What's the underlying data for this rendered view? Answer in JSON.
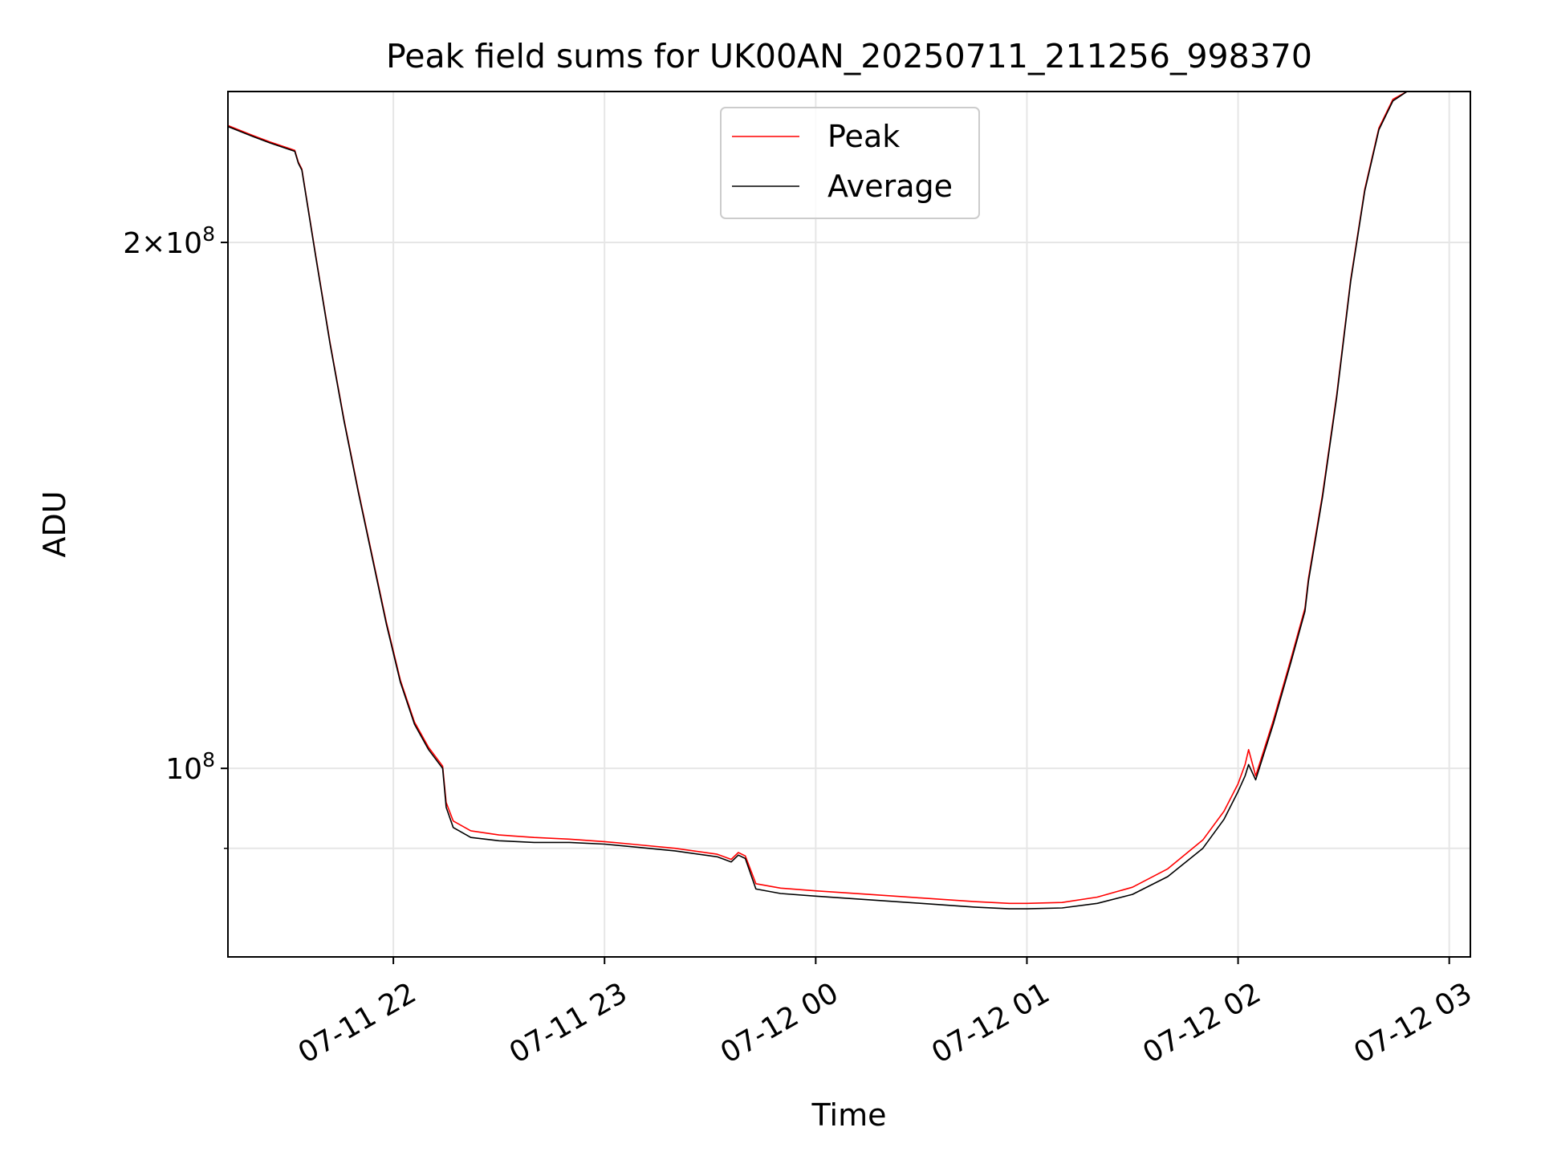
{
  "chart_data": {
    "type": "line",
    "title": "Peak field sums for UK00AN_20250711_211256_998370",
    "xlabel": "Time",
    "ylabel": "ADU",
    "yscale": "log",
    "ylim": [
      78000000,
      244000000
    ],
    "xlim": [
      "2025-07-11 21:13",
      "2025-07-12 03:06"
    ],
    "grid": true,
    "legend": {
      "location": "upper center",
      "entries": [
        "Peak",
        "Average"
      ]
    },
    "x_ticks": [
      {
        "time": "2025-07-11 22:00",
        "label": "07-11 22"
      },
      {
        "time": "2025-07-11 23:00",
        "label": "07-11 23"
      },
      {
        "time": "2025-07-12 00:00",
        "label": "07-12 00"
      },
      {
        "time": "2025-07-12 01:00",
        "label": "07-12 01"
      },
      {
        "time": "2025-07-12 02:00",
        "label": "07-12 02"
      },
      {
        "time": "2025-07-12 03:00",
        "label": "07-12 03"
      }
    ],
    "y_ticks": [
      {
        "value": 100000000,
        "base": "10",
        "exp": "8",
        "mantissa": ""
      },
      {
        "value": 200000000,
        "base": "10",
        "exp": "8",
        "mantissa": "2×"
      }
    ],
    "y_minor_ticks": [
      90000000
    ],
    "colors": {
      "peak": "#ff0000",
      "average": "#000000"
    },
    "series": [
      {
        "name": "Average",
        "color": "#000000",
        "points": [
          [
            "2025-07-11 21:13",
            233000000
          ],
          [
            "2025-07-11 21:20",
            230000000
          ],
          [
            "2025-07-11 21:25",
            228000000
          ],
          [
            "2025-07-11 21:32",
            225500000
          ],
          [
            "2025-07-11 21:33",
            222000000
          ],
          [
            "2025-07-11 21:34",
            220000000
          ],
          [
            "2025-07-11 21:38",
            196000000
          ],
          [
            "2025-07-11 21:42",
            175000000
          ],
          [
            "2025-07-11 21:46",
            158000000
          ],
          [
            "2025-07-11 21:50",
            144000000
          ],
          [
            "2025-07-11 21:54",
            132000000
          ],
          [
            "2025-07-11 21:58",
            121000000
          ],
          [
            "2025-07-11 22:02",
            112000000
          ],
          [
            "2025-07-11 22:06",
            106000000
          ],
          [
            "2025-07-11 22:10",
            102500000
          ],
          [
            "2025-07-11 22:14",
            100000000
          ],
          [
            "2025-07-11 22:15",
            95000000
          ],
          [
            "2025-07-11 22:17",
            92500000
          ],
          [
            "2025-07-11 22:22",
            91300000
          ],
          [
            "2025-07-11 22:30",
            90900000
          ],
          [
            "2025-07-11 22:40",
            90700000
          ],
          [
            "2025-07-11 22:50",
            90700000
          ],
          [
            "2025-07-11 23:00",
            90500000
          ],
          [
            "2025-07-11 23:10",
            90100000
          ],
          [
            "2025-07-11 23:20",
            89700000
          ],
          [
            "2025-07-11 23:32",
            89000000
          ],
          [
            "2025-07-11 23:36",
            88400000
          ],
          [
            "2025-07-11 23:38",
            89200000
          ],
          [
            "2025-07-11 23:40",
            88800000
          ],
          [
            "2025-07-11 23:43",
            85300000
          ],
          [
            "2025-07-11 23:50",
            84800000
          ],
          [
            "2025-07-12 00:00",
            84500000
          ],
          [
            "2025-07-12 00:15",
            84100000
          ],
          [
            "2025-07-12 00:30",
            83700000
          ],
          [
            "2025-07-12 00:45",
            83300000
          ],
          [
            "2025-07-12 00:55",
            83100000
          ],
          [
            "2025-07-12 01:00",
            83100000
          ],
          [
            "2025-07-12 01:10",
            83200000
          ],
          [
            "2025-07-12 01:20",
            83700000
          ],
          [
            "2025-07-12 01:30",
            84700000
          ],
          [
            "2025-07-12 01:40",
            86700000
          ],
          [
            "2025-07-12 01:50",
            90000000
          ],
          [
            "2025-07-12 01:56",
            93500000
          ],
          [
            "2025-07-12 02:00",
            97000000
          ],
          [
            "2025-07-12 02:02",
            99000000
          ],
          [
            "2025-07-12 02:03",
            100500000
          ],
          [
            "2025-07-12 02:05",
            98500000
          ],
          [
            "2025-07-12 02:10",
            106000000
          ],
          [
            "2025-07-12 02:15",
            115000000
          ],
          [
            "2025-07-12 02:19",
            123000000
          ],
          [
            "2025-07-12 02:20",
            128000000
          ],
          [
            "2025-07-12 02:24",
            143000000
          ],
          [
            "2025-07-12 02:28",
            163000000
          ],
          [
            "2025-07-12 02:32",
            190000000
          ],
          [
            "2025-07-12 02:36",
            214000000
          ],
          [
            "2025-07-12 02:40",
            232000000
          ],
          [
            "2025-07-12 02:44",
            241000000
          ],
          [
            "2025-07-12 02:48",
            244000000
          ]
        ]
      },
      {
        "name": "Peak",
        "color": "#ff0000",
        "points": [
          [
            "2025-07-11 21:13",
            233300000
          ],
          [
            "2025-07-11 21:20",
            230300000
          ],
          [
            "2025-07-11 21:25",
            228300000
          ],
          [
            "2025-07-11 21:32",
            225800000
          ],
          [
            "2025-07-11 21:33",
            222300000
          ],
          [
            "2025-07-11 21:34",
            220300000
          ],
          [
            "2025-07-11 21:38",
            196300000
          ],
          [
            "2025-07-11 21:42",
            175300000
          ],
          [
            "2025-07-11 21:46",
            158300000
          ],
          [
            "2025-07-11 21:50",
            144300000
          ],
          [
            "2025-07-11 21:54",
            132300000
          ],
          [
            "2025-07-11 21:58",
            121300000
          ],
          [
            "2025-07-11 22:02",
            112300000
          ],
          [
            "2025-07-11 22:06",
            106300000
          ],
          [
            "2025-07-11 22:10",
            102800000
          ],
          [
            "2025-07-11 22:14",
            100300000
          ],
          [
            "2025-07-11 22:15",
            95600000
          ],
          [
            "2025-07-11 22:17",
            93300000
          ],
          [
            "2025-07-11 22:22",
            92100000
          ],
          [
            "2025-07-11 22:30",
            91600000
          ],
          [
            "2025-07-11 22:40",
            91300000
          ],
          [
            "2025-07-11 22:50",
            91100000
          ],
          [
            "2025-07-11 23:00",
            90800000
          ],
          [
            "2025-07-11 23:10",
            90400000
          ],
          [
            "2025-07-11 23:20",
            90000000
          ],
          [
            "2025-07-11 23:32",
            89300000
          ],
          [
            "2025-07-11 23:36",
            88700000
          ],
          [
            "2025-07-11 23:38",
            89500000
          ],
          [
            "2025-07-11 23:40",
            89100000
          ],
          [
            "2025-07-11 23:43",
            85900000
          ],
          [
            "2025-07-11 23:50",
            85400000
          ],
          [
            "2025-07-12 00:00",
            85100000
          ],
          [
            "2025-07-12 00:15",
            84700000
          ],
          [
            "2025-07-12 00:30",
            84300000
          ],
          [
            "2025-07-12 00:45",
            83900000
          ],
          [
            "2025-07-12 00:55",
            83700000
          ],
          [
            "2025-07-12 01:00",
            83700000
          ],
          [
            "2025-07-12 01:10",
            83800000
          ],
          [
            "2025-07-12 01:20",
            84400000
          ],
          [
            "2025-07-12 01:30",
            85500000
          ],
          [
            "2025-07-12 01:40",
            87600000
          ],
          [
            "2025-07-12 01:50",
            91000000
          ],
          [
            "2025-07-12 01:56",
            94500000
          ],
          [
            "2025-07-12 02:00",
            98000000
          ],
          [
            "2025-07-12 02:02",
            100500000
          ],
          [
            "2025-07-12 02:03",
            102500000
          ],
          [
            "2025-07-12 02:05",
            99000000
          ],
          [
            "2025-07-12 02:10",
            106500000
          ],
          [
            "2025-07-12 02:15",
            115500000
          ],
          [
            "2025-07-12 02:19",
            123500000
          ],
          [
            "2025-07-12 02:20",
            128500000
          ],
          [
            "2025-07-12 02:24",
            143500000
          ],
          [
            "2025-07-12 02:28",
            163500000
          ],
          [
            "2025-07-12 02:32",
            190500000
          ],
          [
            "2025-07-12 02:36",
            214500000
          ],
          [
            "2025-07-12 02:40",
            232500000
          ],
          [
            "2025-07-12 02:44",
            241500000
          ],
          [
            "2025-07-12 02:48",
            244000000
          ]
        ]
      }
    ]
  }
}
